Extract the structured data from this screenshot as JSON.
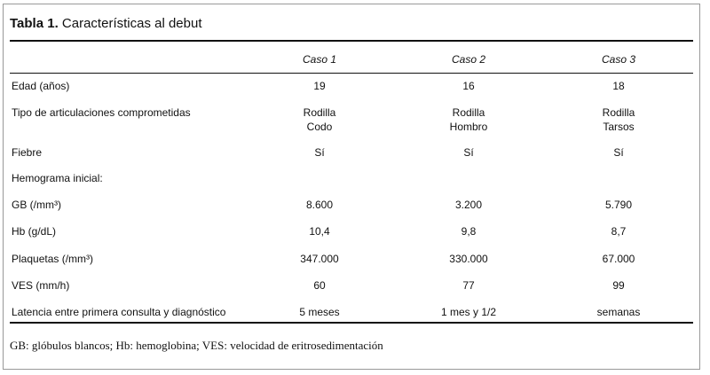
{
  "header": {
    "label": "Tabla 1.",
    "title": "Características al debut"
  },
  "table": {
    "columns": [
      "Caso 1",
      "Caso 2",
      "Caso 3"
    ],
    "rows": [
      [
        "Edad (años)",
        "19",
        "16",
        "18"
      ],
      [
        "Tipo de articulaciones comprometidas",
        [
          "Rodilla",
          "Codo"
        ],
        [
          "Rodilla",
          "Hombro"
        ],
        [
          "Rodilla",
          "Tarsos"
        ]
      ],
      [
        "Fiebre",
        "Sí",
        "Sí",
        "Sí"
      ],
      [
        "Hemograma inicial:"
      ],
      [
        "GB (/mm³)",
        "8.600",
        "3.200",
        "5.790"
      ],
      [
        "Hb (g/dL)",
        "10,4",
        "9,8",
        "8,7"
      ],
      [
        "Plaquetas (/mm³)",
        "347.000",
        "330.000",
        "67.000"
      ],
      [
        "VES (mm/h)",
        "60",
        "77",
        "99"
      ],
      [
        "Latencia entre primera consulta y diagnóstico",
        "5 meses",
        "1 mes y 1/2",
        "semanas"
      ]
    ]
  },
  "footnote": "GB: glóbulos blancos; Hb: hemoglobina; VES: velocidad de eritrosedimentación"
}
